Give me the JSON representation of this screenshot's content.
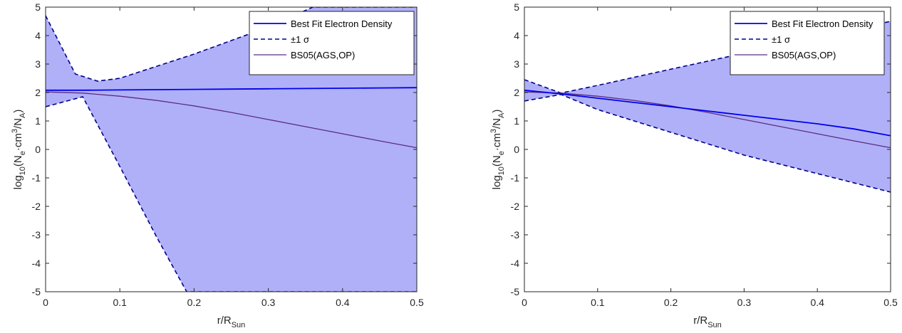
{
  "colors": {
    "band_fill": "#b0b0f8",
    "best_fit": "#0000ee",
    "sigma": "#00008b",
    "bs05": "#5a2d82",
    "axis": "#262626"
  },
  "chart_data": [
    {
      "type": "line",
      "xlim": [
        0,
        0.5
      ],
      "ylim": [
        -5,
        5
      ],
      "x_ticks": [
        "0",
        "0.1",
        "0.2",
        "0.3",
        "0.4",
        "0.5"
      ],
      "y_ticks": [
        "5",
        "4",
        "3",
        "2",
        "1",
        "0",
        "-1",
        "-2",
        "-3",
        "-4",
        "-5"
      ],
      "xlabel_base": "r/R",
      "xlabel_sub": "Sun",
      "ylabel_parts": [
        "log",
        "10",
        "(N",
        "e",
        "·cm",
        "3",
        "/N",
        "A",
        ")"
      ],
      "legend_placement": "top-right",
      "series": [
        {
          "name": "Best Fit Electron Density",
          "style": "solid",
          "x": [
            0,
            0.05,
            0.1,
            0.15,
            0.2,
            0.25,
            0.3,
            0.35,
            0.4,
            0.45,
            0.5
          ],
          "y": [
            2.08,
            2.08,
            2.09,
            2.1,
            2.11,
            2.12,
            2.13,
            2.14,
            2.15,
            2.16,
            2.17
          ]
        },
        {
          "name": "±1 σ",
          "style": "dashed",
          "upper": {
            "x": [
              0,
              0.04,
              0.07,
              0.1,
              0.2,
              0.3,
              0.36,
              0.5
            ],
            "y": [
              4.7,
              2.65,
              2.4,
              2.5,
              3.35,
              4.3,
              5.0,
              5.0
            ]
          },
          "lower": {
            "x": [
              0,
              0.05,
              0.1,
              0.15,
              0.19,
              0.5
            ],
            "y": [
              1.5,
              1.85,
              -0.6,
              -3.1,
              -5.0,
              -5.0
            ]
          }
        },
        {
          "name": "BS05(AGS,OP)",
          "style": "solid",
          "x": [
            0,
            0.05,
            0.1,
            0.15,
            0.2,
            0.25,
            0.3,
            0.35,
            0.4,
            0.45,
            0.5
          ],
          "y": [
            2.02,
            1.98,
            1.87,
            1.72,
            1.53,
            1.3,
            1.05,
            0.8,
            0.55,
            0.3,
            0.06
          ]
        }
      ]
    },
    {
      "type": "line",
      "xlim": [
        0,
        0.5
      ],
      "ylim": [
        -5,
        5
      ],
      "x_ticks": [
        "0",
        "0.1",
        "0.2",
        "0.3",
        "0.4",
        "0.5"
      ],
      "y_ticks": [
        "5",
        "4",
        "3",
        "2",
        "1",
        "0",
        "-1",
        "-2",
        "-3",
        "-4",
        "-5"
      ],
      "xlabel_base": "r/R",
      "xlabel_sub": "Sun",
      "ylabel_parts": [
        "log",
        "10",
        "(N",
        "e",
        "·cm",
        "3",
        "/N",
        "A",
        ")"
      ],
      "legend_placement": "top-right",
      "series": [
        {
          "name": "Best Fit Electron Density",
          "style": "solid",
          "x": [
            0,
            0.05,
            0.1,
            0.15,
            0.2,
            0.25,
            0.3,
            0.35,
            0.4,
            0.45,
            0.5
          ],
          "y": [
            2.08,
            1.95,
            1.8,
            1.65,
            1.5,
            1.35,
            1.2,
            1.05,
            0.9,
            0.72,
            0.48
          ]
        },
        {
          "name": "±1 σ",
          "style": "dashed",
          "upper": {
            "x": [
              0,
              0.05,
              0.1,
              0.2,
              0.3,
              0.4,
              0.5
            ],
            "y": [
              2.45,
              1.98,
              2.25,
              2.82,
              3.38,
              3.95,
              4.5
            ]
          },
          "lower": {
            "x": [
              0,
              0.05,
              0.1,
              0.2,
              0.3,
              0.4,
              0.5
            ],
            "y": [
              1.7,
              1.93,
              1.4,
              0.6,
              -0.2,
              -0.85,
              -1.5
            ]
          }
        },
        {
          "name": "BS05(AGS,OP)",
          "style": "solid",
          "x": [
            0,
            0.05,
            0.1,
            0.15,
            0.2,
            0.25,
            0.3,
            0.35,
            0.4,
            0.45,
            0.5
          ],
          "y": [
            2.02,
            1.98,
            1.87,
            1.72,
            1.53,
            1.3,
            1.05,
            0.8,
            0.55,
            0.3,
            0.06
          ]
        }
      ]
    }
  ]
}
